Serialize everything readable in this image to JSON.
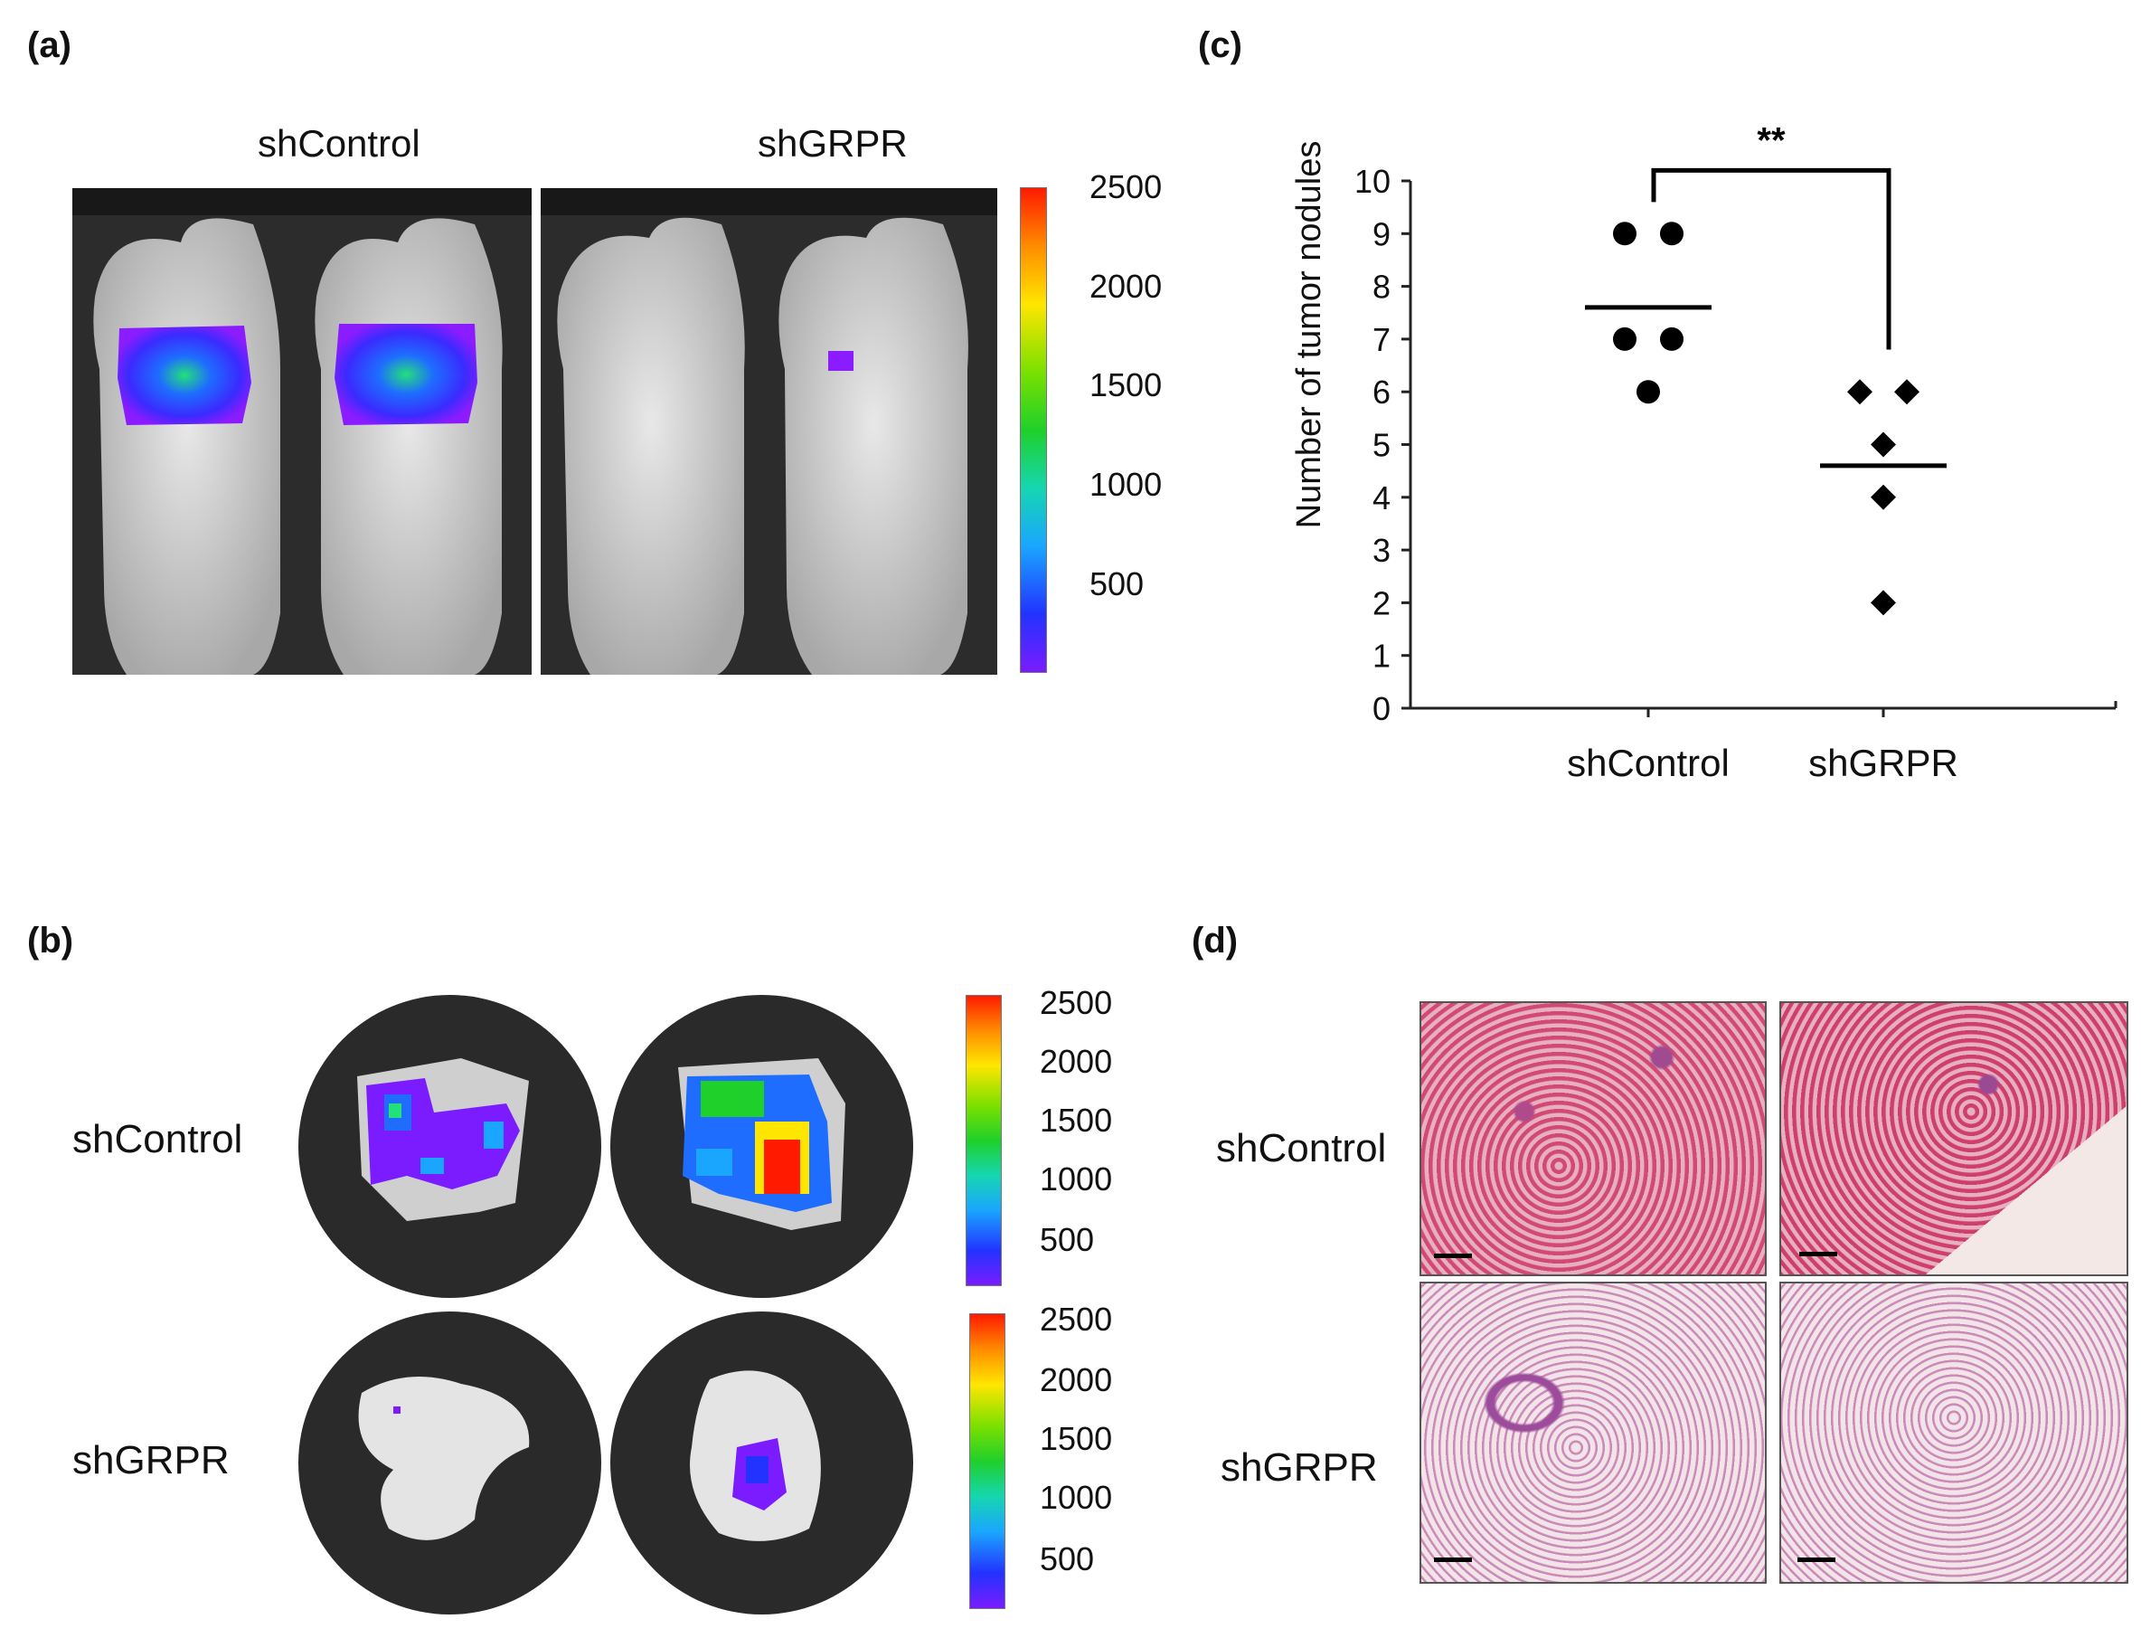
{
  "panels": {
    "a": {
      "letter": "(a)",
      "labels": [
        "shControl",
        "shGRPR"
      ],
      "colorbar_ticks": [
        "2500",
        "2000",
        "1500",
        "1000",
        "500"
      ]
    },
    "b": {
      "letter": "(b)",
      "row_labels": [
        "shControl",
        "shGRPR"
      ],
      "colorbar_top_ticks": [
        "2500",
        "2000",
        "1500",
        "1000",
        "500"
      ],
      "colorbar_bottom_ticks": [
        "2500",
        "2000",
        "1500",
        "1000",
        "500"
      ]
    },
    "c": {
      "letter": "(c)"
    },
    "d": {
      "letter": "(d)",
      "row_labels": [
        "shControl",
        "shGRPR"
      ]
    }
  },
  "colors": {
    "heat_low": "#7a1cff",
    "heat_mid": "#1fe01f",
    "heat_high": "#ff1a00",
    "histo_control": "#d4557a",
    "histo_grpr": "#d8a8c4"
  },
  "chart_data": {
    "type": "scatter",
    "ylabel": "Number of tumor nodules",
    "xlabel": "",
    "categories": [
      "shControl",
      "shGRPR"
    ],
    "ylim": [
      0,
      10
    ],
    "yticks": [
      "0",
      "1",
      "2",
      "3",
      "4",
      "5",
      "6",
      "7",
      "8",
      "9",
      "10"
    ],
    "series": [
      {
        "category": "shControl",
        "marker": "circle",
        "values": [
          9,
          9,
          7,
          7,
          6
        ],
        "mean": 7.6
      },
      {
        "category": "shGRPR",
        "marker": "diamond",
        "values": [
          6,
          6,
          5,
          4,
          2
        ],
        "mean": 4.6
      }
    ],
    "significance": "**"
  }
}
